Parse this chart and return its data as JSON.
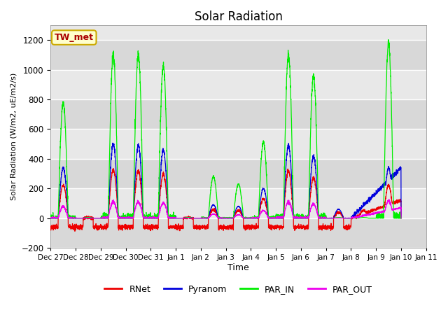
{
  "title": "Solar Radiation",
  "ylabel": "Solar Radiation (W/m2, uE/m2/s)",
  "xlabel": "Time",
  "ylim": [
    -200,
    1300
  ],
  "yticks": [
    -200,
    0,
    200,
    400,
    600,
    800,
    1000,
    1200
  ],
  "background_color": "#ffffff",
  "plot_bg_color": "#e8e8e8",
  "grid_color": "#ffffff",
  "annotation_text": "TW_met",
  "annotation_bg": "#ffffcc",
  "annotation_border": "#ccaa00",
  "series_colors": {
    "RNet": "#ee0000",
    "Pyranom": "#0000dd",
    "PAR_IN": "#00ee00",
    "PAR_OUT": "#ee00ee"
  },
  "x_tick_labels": [
    "Dec 27",
    "Dec 28",
    "Dec 29",
    "Dec 30",
    "Dec 31",
    "Jan 1",
    "Jan 2",
    "Jan 3",
    "Jan 4",
    "Jan 5",
    "Jan 6",
    "Jan 7",
    "Jan 8",
    "Jan 9",
    "Jan 10",
    "Jan 11"
  ],
  "num_points": 3360,
  "days": 14,
  "figsize": [
    6.4,
    4.8
  ],
  "dpi": 100
}
